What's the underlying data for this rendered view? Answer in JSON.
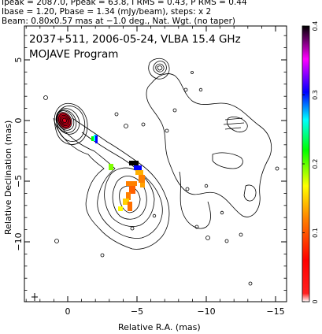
{
  "header": {
    "line1": "Ipeak = 2087.0, Ppeak = 63.8, I RMS = 0.43, P RMS = 0.44",
    "line2": "Ibase = 1.20, Pbase = 1.34 (mJy/beam), steps: x 2",
    "line3": "Beam: 0.80x0.57 mas at −1.0 deg., Nat. Wgt. (no taper)"
  },
  "plot": {
    "title_line1": "2037+511, 2006-05-24, VLBA 15.4 GHz",
    "title_line2": "MOJAVE Program",
    "xlabel": "Relative R.A. (mas)",
    "ylabel": "Relative Declination (mas)",
    "x_ticks": [
      {
        "value": 0,
        "label": "0"
      },
      {
        "value": -5,
        "label": "−5"
      },
      {
        "value": -10,
        "label": "−10"
      },
      {
        "value": -15,
        "label": "−15"
      }
    ],
    "y_ticks": [
      {
        "value": 5,
        "label": "5"
      },
      {
        "value": 0,
        "label": "0"
      },
      {
        "value": -5,
        "label": "−5"
      },
      {
        "value": -10,
        "label": "−10"
      }
    ],
    "colorbar_ticks": [
      {
        "value": 0,
        "label": "0"
      },
      {
        "value": 0.1,
        "label": "0.1"
      },
      {
        "value": 0.2,
        "label": "0.2"
      },
      {
        "value": 0.3,
        "label": "0.3"
      },
      {
        "value": 0.4,
        "label": "0.4"
      }
    ],
    "colors": {
      "contour": "#000000",
      "core_fill": "#e0001a",
      "colorbar_stops": [
        "#ffffff",
        "#ff0000",
        "#ff7f00",
        "#ffff00",
        "#00ff00",
        "#00ffff",
        "#0000ff",
        "#ff00ff",
        "#000000"
      ]
    }
  }
}
